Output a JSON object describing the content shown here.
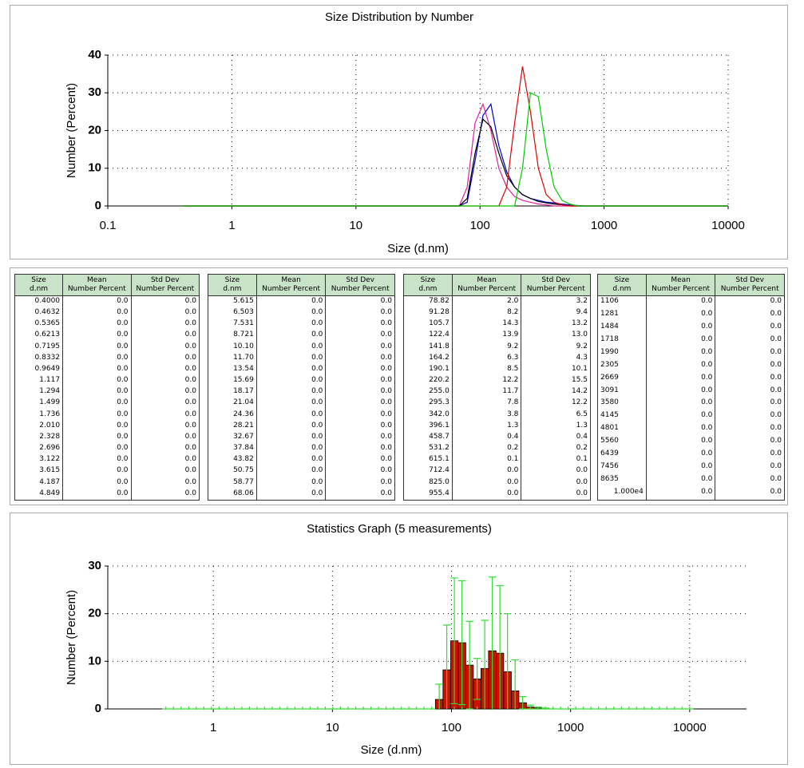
{
  "chart_data": [
    {
      "type": "line",
      "title": "Size Distribution by Number",
      "xlabel": "Size (d.nm)",
      "ylabel": "Number (Percent)",
      "log_x": true,
      "grid": true,
      "xlim": [
        0.1,
        10000
      ],
      "xticks": [
        0.1,
        1,
        10,
        100,
        1000,
        10000
      ],
      "ylim": [
        0,
        40
      ],
      "yticks": [
        0,
        10,
        20,
        30,
        40
      ],
      "x": [
        0.4,
        68.06,
        78.82,
        91.28,
        105.7,
        122.4,
        141.8,
        164.2,
        190.1,
        220.2,
        255.0,
        295.3,
        342.0,
        396.1,
        458.7,
        531.2,
        615.1,
        712.4,
        825.0,
        10000
      ],
      "series": [
        {
          "color": "#0000cc",
          "values": [
            0,
            0,
            1,
            12,
            24,
            27,
            16,
            9,
            5,
            3,
            2,
            1.5,
            1,
            0.8,
            0.5,
            0.3,
            0.1,
            0,
            0,
            0
          ]
        },
        {
          "color": "#e0209a",
          "values": [
            0,
            0,
            5,
            22,
            27,
            20,
            10,
            5,
            2.5,
            1.5,
            1,
            0.5,
            0.3,
            0,
            0,
            0,
            0,
            0,
            0,
            0
          ]
        },
        {
          "color": "#000000",
          "values": [
            0,
            0,
            2,
            14,
            23,
            21,
            14,
            8,
            5,
            3,
            2,
            1.2,
            0.8,
            0.5,
            0.3,
            0,
            0,
            0,
            0,
            0
          ]
        },
        {
          "color": "#e00000",
          "values": [
            0,
            0,
            0,
            0,
            0,
            0,
            0,
            5,
            22,
            37,
            25,
            10,
            3,
            1,
            0.3,
            0,
            0,
            0,
            0,
            0
          ]
        },
        {
          "color": "#00cc00",
          "values": [
            0,
            0,
            0,
            0,
            0,
            0,
            0,
            0,
            0,
            10,
            30,
            29,
            15,
            5,
            1.5,
            0.5,
            0,
            0,
            0,
            0
          ]
        }
      ]
    },
    {
      "type": "bar",
      "title": "Statistics Graph (5 measurements)",
      "xlabel": "Size (d.nm)",
      "ylabel": "Number (Percent)",
      "log_x": true,
      "grid": true,
      "color": "#cc1100",
      "error_color": "#33dd33",
      "xlim": [
        0.13,
        30000
      ],
      "xticks": [
        1,
        10,
        100,
        1000,
        10000
      ],
      "ylim": [
        0,
        30
      ],
      "yticks": [
        0,
        10,
        20,
        30
      ],
      "x": [
        0.4,
        0.4632,
        0.5365,
        0.6213,
        0.7195,
        0.8332,
        0.9649,
        1.117,
        1.294,
        1.499,
        1.736,
        2.01,
        2.328,
        2.696,
        3.122,
        3.615,
        4.187,
        4.849,
        5.615,
        6.503,
        7.531,
        8.721,
        10.1,
        11.7,
        13.54,
        15.69,
        18.17,
        21.04,
        24.36,
        28.21,
        32.67,
        37.84,
        43.82,
        50.75,
        58.77,
        68.06,
        78.82,
        91.28,
        105.7,
        122.4,
        141.8,
        164.2,
        190.1,
        220.2,
        255,
        295.3,
        342,
        396.1,
        458.7,
        531.2,
        615.1,
        712.4,
        825,
        955.4,
        1106,
        1281,
        1484,
        1718,
        1990,
        2305,
        2669,
        3091,
        3580,
        4145,
        4801,
        5560,
        6439,
        7456,
        8635,
        10000
      ],
      "values": [
        0,
        0,
        0,
        0,
        0,
        0,
        0,
        0,
        0,
        0,
        0,
        0,
        0,
        0,
        0,
        0,
        0,
        0,
        0,
        0,
        0,
        0,
        0,
        0,
        0,
        0,
        0,
        0,
        0,
        0,
        0,
        0,
        0,
        0,
        0,
        0,
        2,
        8.2,
        14.3,
        13.9,
        9.2,
        6.3,
        8.5,
        12.2,
        11.7,
        7.8,
        3.8,
        1.3,
        0.4,
        0.2,
        0.1,
        0,
        0,
        0,
        0,
        0,
        0,
        0,
        0,
        0,
        0,
        0,
        0,
        0,
        0,
        0,
        0,
        0,
        0,
        0
      ],
      "errors": [
        0,
        0,
        0,
        0,
        0,
        0,
        0,
        0,
        0,
        0,
        0,
        0,
        0,
        0,
        0,
        0,
        0,
        0,
        0,
        0,
        0,
        0,
        0,
        0,
        0,
        0,
        0,
        0,
        0,
        0,
        0,
        0,
        0,
        0,
        0,
        0,
        3.2,
        9.4,
        13.2,
        13,
        9.2,
        4.3,
        10.1,
        15.5,
        14.2,
        12.2,
        6.5,
        1.3,
        0.4,
        0.2,
        0.1,
        0,
        0,
        0,
        0,
        0,
        0,
        0,
        0,
        0,
        0,
        0,
        0,
        0,
        0,
        0,
        0,
        0,
        0,
        0
      ]
    }
  ],
  "table": {
    "headers": [
      {
        "top": "Size",
        "bottom": "d.nm"
      },
      {
        "top": "Mean",
        "bottom": "Number Percent"
      },
      {
        "top": "Std Dev",
        "bottom": "Number Percent"
      }
    ],
    "panels": [
      [
        [
          "0.4000",
          "0.0",
          "0.0"
        ],
        [
          "0.4632",
          "0.0",
          "0.0"
        ],
        [
          "0.5365",
          "0.0",
          "0.0"
        ],
        [
          "0.6213",
          "0.0",
          "0.0"
        ],
        [
          "0.7195",
          "0.0",
          "0.0"
        ],
        [
          "0.8332",
          "0.0",
          "0.0"
        ],
        [
          "0.9649",
          "0.0",
          "0.0"
        ],
        [
          "1.117",
          "0.0",
          "0.0"
        ],
        [
          "1.294",
          "0.0",
          "0.0"
        ],
        [
          "1.499",
          "0.0",
          "0.0"
        ],
        [
          "1.736",
          "0.0",
          "0.0"
        ],
        [
          "2.010",
          "0.0",
          "0.0"
        ],
        [
          "2.328",
          "0.0",
          "0.0"
        ],
        [
          "2.696",
          "0.0",
          "0.0"
        ],
        [
          "3.122",
          "0.0",
          "0.0"
        ],
        [
          "3.615",
          "0.0",
          "0.0"
        ],
        [
          "4.187",
          "0.0",
          "0.0"
        ],
        [
          "4.849",
          "0.0",
          "0.0"
        ]
      ],
      [
        [
          "5.615",
          "0.0",
          "0.0"
        ],
        [
          "6.503",
          "0.0",
          "0.0"
        ],
        [
          "7.531",
          "0.0",
          "0.0"
        ],
        [
          "8.721",
          "0.0",
          "0.0"
        ],
        [
          "10.10",
          "0.0",
          "0.0"
        ],
        [
          "11.70",
          "0.0",
          "0.0"
        ],
        [
          "13.54",
          "0.0",
          "0.0"
        ],
        [
          "15.69",
          "0.0",
          "0.0"
        ],
        [
          "18.17",
          "0.0",
          "0.0"
        ],
        [
          "21.04",
          "0.0",
          "0.0"
        ],
        [
          "24.36",
          "0.0",
          "0.0"
        ],
        [
          "28.21",
          "0.0",
          "0.0"
        ],
        [
          "32.67",
          "0.0",
          "0.0"
        ],
        [
          "37.84",
          "0.0",
          "0.0"
        ],
        [
          "43.82",
          "0.0",
          "0.0"
        ],
        [
          "50.75",
          "0.0",
          "0.0"
        ],
        [
          "58.77",
          "0.0",
          "0.0"
        ],
        [
          "68.06",
          "0.0",
          "0.0"
        ]
      ],
      [
        [
          "78.82",
          "2.0",
          "3.2"
        ],
        [
          "91.28",
          "8.2",
          "9.4"
        ],
        [
          "105.7",
          "14.3",
          "13.2"
        ],
        [
          "122.4",
          "13.9",
          "13.0"
        ],
        [
          "141.8",
          "9.2",
          "9.2"
        ],
        [
          "164.2",
          "6.3",
          "4.3"
        ],
        [
          "190.1",
          "8.5",
          "10.1"
        ],
        [
          "220.2",
          "12.2",
          "15.5"
        ],
        [
          "255.0",
          "11.7",
          "14.2"
        ],
        [
          "295.3",
          "7.8",
          "12.2"
        ],
        [
          "342.0",
          "3.8",
          "6.5"
        ],
        [
          "396.1",
          "1.3",
          "1.3"
        ],
        [
          "458.7",
          "0.4",
          "0.4"
        ],
        [
          "531.2",
          "0.2",
          "0.2"
        ],
        [
          "615.1",
          "0.1",
          "0.1"
        ],
        [
          "712.4",
          "0.0",
          "0.0"
        ],
        [
          "825.0",
          "0.0",
          "0.0"
        ],
        [
          "955.4",
          "0.0",
          "0.0"
        ]
      ],
      [
        [
          "1106",
          "0.0",
          "0.0"
        ],
        [
          "1281",
          "0.0",
          "0.0"
        ],
        [
          "1484",
          "0.0",
          "0.0"
        ],
        [
          "1718",
          "0.0",
          "0.0"
        ],
        [
          "1990",
          "0.0",
          "0.0"
        ],
        [
          "2305",
          "0.0",
          "0.0"
        ],
        [
          "2669",
          "0.0",
          "0.0"
        ],
        [
          "3091",
          "0.0",
          "0.0"
        ],
        [
          "3580",
          "0.0",
          "0.0"
        ],
        [
          "4145",
          "0.0",
          "0.0"
        ],
        [
          "4801",
          "0.0",
          "0.0"
        ],
        [
          "5560",
          "0.0",
          "0.0"
        ],
        [
          "6439",
          "0.0",
          "0.0"
        ],
        [
          "7456",
          "0.0",
          "0.0"
        ],
        [
          "8635",
          "0.0",
          "0.0"
        ],
        [
          "1.000e4",
          "0.0",
          "0.0"
        ]
      ]
    ]
  }
}
